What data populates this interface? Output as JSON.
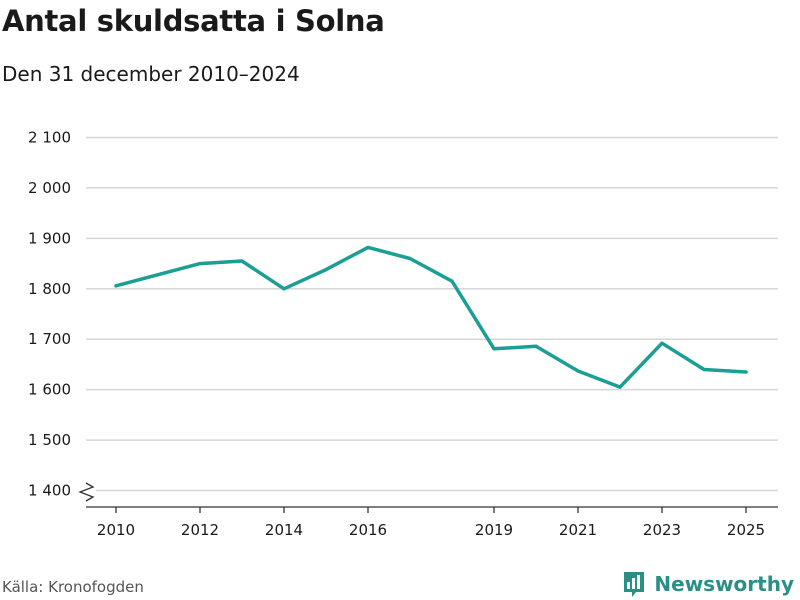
{
  "header": {
    "title": "Antal skuldsatta i Solna",
    "subtitle": "Den 31 december 2010–2024"
  },
  "footer": {
    "source": "Källa: Kronofogden",
    "brand": "Newsworthy",
    "brand_icon": "newsworthy-logo-icon"
  },
  "colors": {
    "line": "#1b9e94",
    "grid": "#d6d6d6",
    "axis": "#333333",
    "brand": "#2a8f85"
  },
  "chart_data": {
    "type": "line",
    "title": "Antal skuldsatta i Solna",
    "subtitle": "Den 31 december 2010–2024",
    "xlabel": "",
    "ylabel": "",
    "x": [
      2010,
      2011,
      2012,
      2013,
      2014,
      2015,
      2016,
      2017,
      2018,
      2019,
      2020,
      2021,
      2022,
      2023,
      2024,
      2025
    ],
    "series": [
      {
        "values": [
          1806,
          1828,
          1850,
          1855,
          1800,
          1838,
          1882,
          1860,
          1815,
          1681,
          1686,
          1637,
          1605,
          1692,
          1640,
          1635
        ]
      }
    ],
    "xticks": [
      2010,
      2012,
      2014,
      2016,
      2019,
      2021,
      2023,
      2025
    ],
    "xtick_labels": [
      "2010",
      "2012",
      "2014",
      "2016",
      "2019",
      "2021",
      "2023",
      "2025"
    ],
    "yticks": [
      1400,
      1500,
      1600,
      1700,
      1800,
      1900,
      2000,
      2100
    ],
    "ytick_labels": [
      "1 400",
      "1 500",
      "1 600",
      "1 700",
      "1 800",
      "1 900",
      "2 000",
      "2 100"
    ],
    "xlim": [
      2010,
      2025
    ],
    "ylim": [
      1400,
      2100
    ],
    "grid": true,
    "axis_break": true
  }
}
